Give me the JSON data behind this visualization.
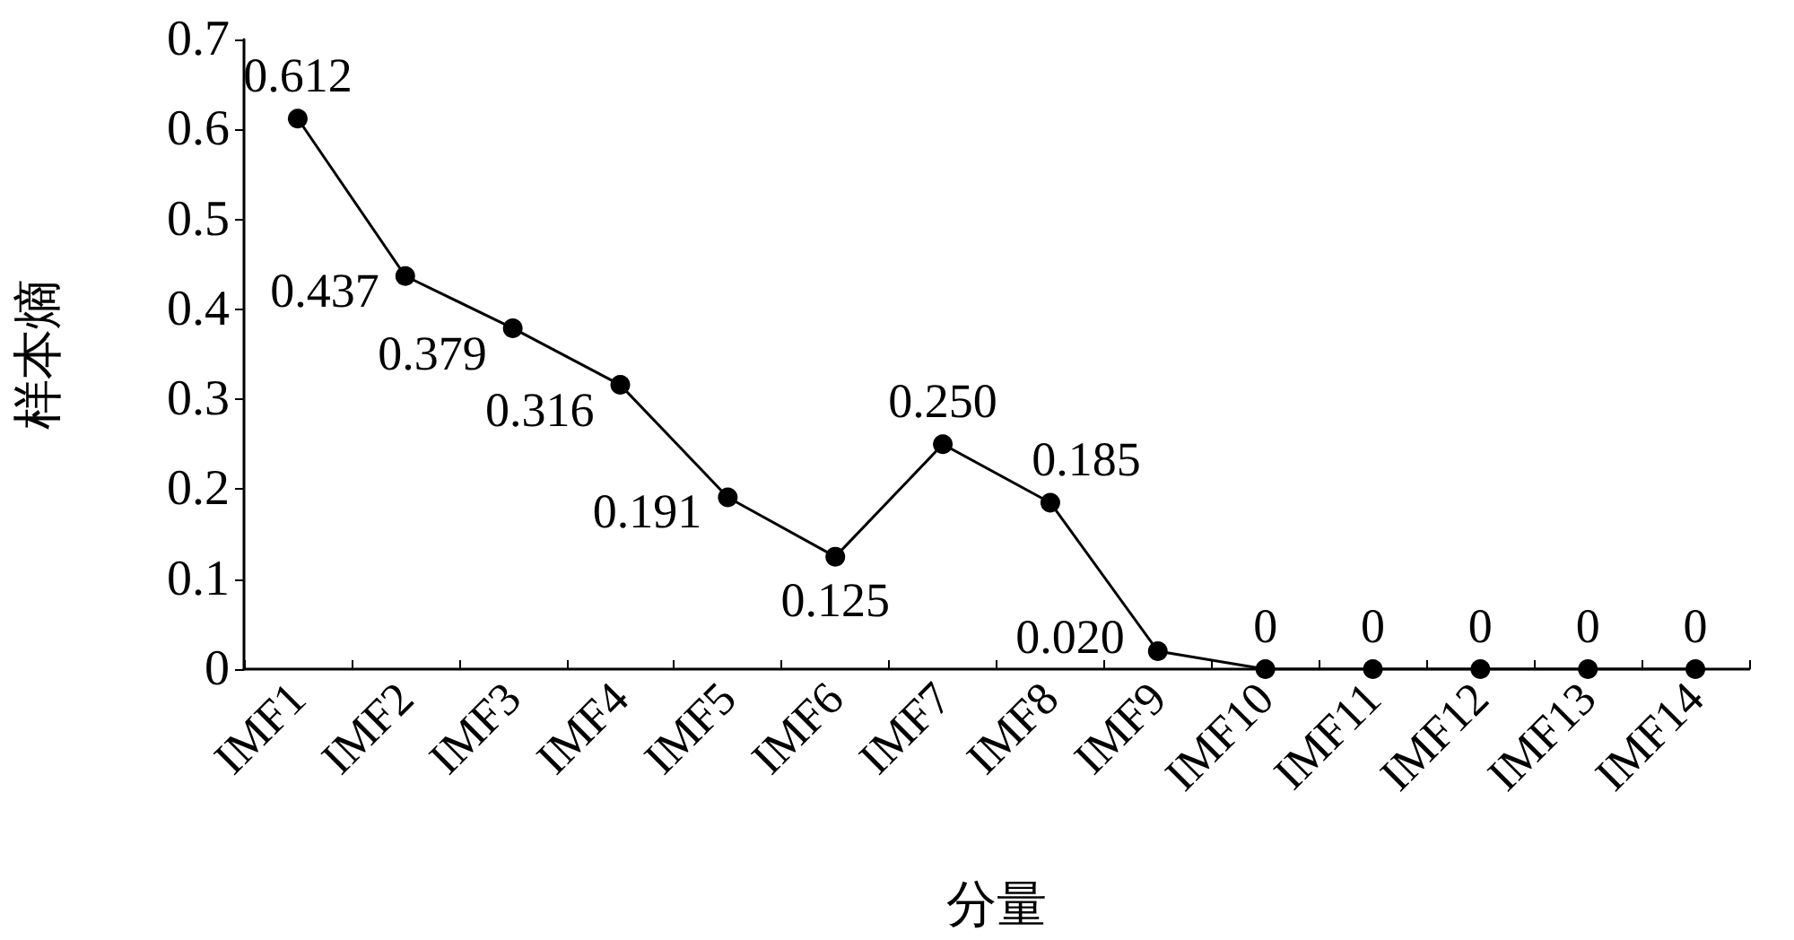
{
  "chart_data": {
    "type": "line",
    "xlabel": "分量",
    "ylabel": "样本熵",
    "categories": [
      "IMF1",
      "IMF2",
      "IMF3",
      "IMF4",
      "IMF5",
      "IMF6",
      "IMF7",
      "IMF8",
      "IMF9",
      "IMF10",
      "IMF11",
      "IMF12",
      "IMF13",
      "IMF14"
    ],
    "series": [
      {
        "color": "#000000",
        "values": [
          0.612,
          0.437,
          0.379,
          0.316,
          0.191,
          0.125,
          0.25,
          0.185,
          0.02,
          0,
          0,
          0,
          0,
          0
        ],
        "value_labels": [
          "0.612",
          "0.437",
          "0.379",
          "0.316",
          "0.191",
          "0.125",
          "0.250",
          "0.185",
          "0.020",
          "0",
          "0",
          "0",
          "0",
          "0"
        ]
      }
    ],
    "ylim": [
      0,
      0.7
    ],
    "yticks": [
      0,
      0.1,
      0.2,
      0.3,
      0.4,
      0.5,
      0.6,
      0.7
    ],
    "grid": false,
    "marker": "circle",
    "line_style": "solid"
  }
}
